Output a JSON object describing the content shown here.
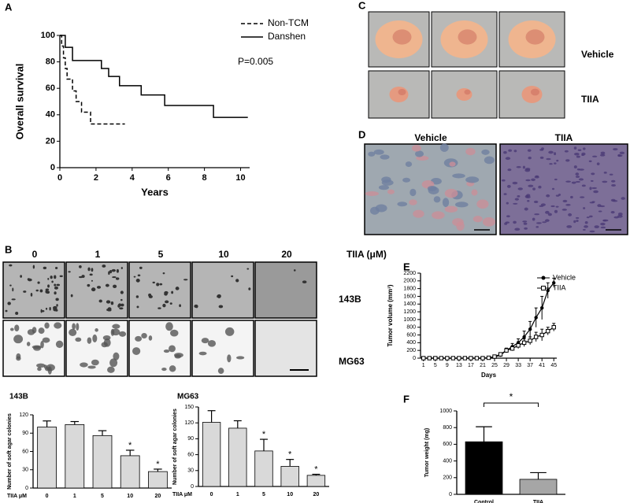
{
  "panel_labels": [
    "A",
    "B",
    "C",
    "D",
    "E",
    "F"
  ],
  "colony_assay": {
    "concentrations": [
      "0",
      "1",
      "5",
      "10",
      "20"
    ],
    "unit_label": "TIIA (μM)",
    "cell_lines": [
      "143B",
      "MG63"
    ]
  },
  "xenograft_photos": {
    "groups": [
      "Vehicle",
      "TIIA"
    ]
  },
  "histology": {
    "groups": [
      "Vehicle",
      "TIIA"
    ]
  },
  "chart_data": [
    {
      "type": "step",
      "xlabel": "Years",
      "ylabel": "Overall survival",
      "annotation": "P=0.005",
      "xlim": [
        0,
        10.5
      ],
      "xticks": [
        0,
        2,
        4,
        6,
        8,
        10
      ],
      "ylim": [
        0,
        100
      ],
      "yticks": [
        0,
        20,
        40,
        60,
        80,
        100
      ],
      "series": [
        {
          "name": "Non-TCM",
          "color": "#000000",
          "style": "dashed",
          "x": [
            0,
            0.1,
            0.2,
            0.3,
            0.4,
            0.7,
            0.9,
            1.2,
            1.7,
            3.6
          ],
          "values": [
            100,
            92,
            83,
            75,
            67,
            58,
            50,
            42,
            33,
            33
          ]
        },
        {
          "name": "Danshen",
          "color": "#000000",
          "style": "solid",
          "x": [
            0,
            0.3,
            0.7,
            2.3,
            2.7,
            3.3,
            4.5,
            5.8,
            8.5,
            10.4
          ],
          "values": [
            100,
            91,
            81,
            75,
            69,
            62,
            55,
            47,
            38,
            38
          ]
        }
      ]
    },
    {
      "type": "bar",
      "title": "143B",
      "ylabel": "Number of soft agar colonies",
      "xlabel": "TIIA  μM",
      "categories": [
        "0",
        "1",
        "5",
        "10",
        "20"
      ],
      "values": [
        100,
        104,
        86,
        53,
        27
      ],
      "errors": [
        10,
        5,
        8,
        9,
        4
      ],
      "significance": [
        null,
        null,
        null,
        "*",
        "*"
      ],
      "color": "#d9d9d9",
      "ylim": [
        0,
        120
      ],
      "yticks": [
        0,
        30,
        60,
        90,
        120
      ]
    },
    {
      "type": "bar",
      "title": "MG63",
      "ylabel": "Number of soft agar colonies",
      "xlabel": "TIIA  μM",
      "categories": [
        "0",
        "1",
        "5",
        "10",
        "20"
      ],
      "values": [
        121,
        110,
        67,
        38,
        21
      ],
      "errors": [
        22,
        14,
        22,
        13,
        2
      ],
      "significance": [
        null,
        null,
        "*",
        "*",
        "*"
      ],
      "color": "#d9d9d9",
      "ylim": [
        0,
        150
      ],
      "yticks": [
        0,
        30,
        60,
        90,
        120,
        150
      ]
    },
    {
      "type": "line",
      "xlabel": "Days",
      "ylabel": "Tumor volume (mm³)",
      "x": [
        1,
        3,
        5,
        7,
        9,
        11,
        13,
        15,
        17,
        19,
        21,
        23,
        25,
        27,
        29,
        31,
        33,
        35,
        37,
        39,
        41,
        43,
        45
      ],
      "xlim": [
        0,
        46
      ],
      "xticks": [
        1,
        5,
        9,
        13,
        17,
        21,
        25,
        29,
        33,
        37,
        41,
        45
      ],
      "ylim": [
        0,
        2200
      ],
      "yticks": [
        0,
        200,
        400,
        600,
        800,
        1000,
        1200,
        1400,
        1600,
        1800,
        2000,
        2200
      ],
      "series": [
        {
          "name": "Vehicle",
          "color": "#000000",
          "marker": "circle",
          "values": [
            0,
            0,
            0,
            0,
            0,
            0,
            0,
            0,
            0,
            0,
            0,
            10,
            30,
            80,
            200,
            300,
            400,
            550,
            750,
            1050,
            1300,
            1750,
            1950
          ],
          "errors": [
            0,
            0,
            0,
            0,
            0,
            0,
            0,
            0,
            0,
            0,
            0,
            5,
            10,
            30,
            60,
            80,
            100,
            150,
            200,
            250,
            300,
            200,
            120
          ]
        },
        {
          "name": "TIIA",
          "color": "#000000",
          "marker": "square",
          "values": [
            0,
            0,
            0,
            0,
            0,
            0,
            0,
            0,
            0,
            0,
            0,
            10,
            40,
            100,
            200,
            250,
            330,
            400,
            450,
            550,
            600,
            700,
            800
          ],
          "errors": [
            0,
            0,
            0,
            0,
            0,
            0,
            0,
            0,
            0,
            0,
            0,
            5,
            10,
            30,
            50,
            60,
            80,
            100,
            100,
            120,
            150,
            100,
            100
          ]
        }
      ]
    },
    {
      "type": "bar",
      "ylabel": "Tumor weight (mg)",
      "categories": [
        "Control",
        "TIIA"
      ],
      "values": [
        630,
        180
      ],
      "errors": [
        180,
        80
      ],
      "colors": [
        "#000000",
        "#a6a6a6"
      ],
      "bracket": "*",
      "ylim": [
        0,
        1000
      ],
      "yticks": [
        0,
        200,
        400,
        600,
        800,
        1000
      ]
    }
  ]
}
